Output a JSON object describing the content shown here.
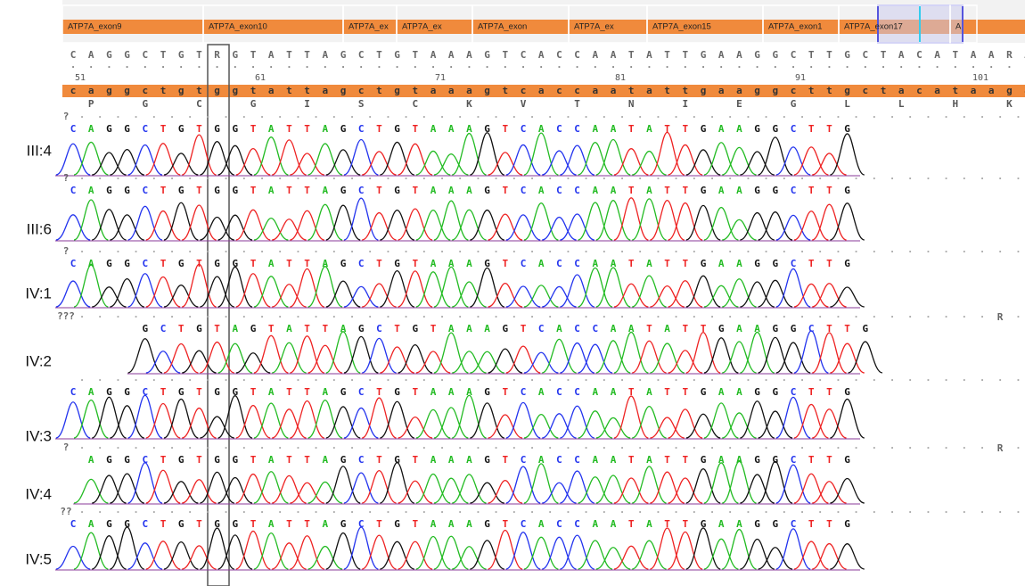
{
  "exons": [
    "ATP7A_exon9",
    "ATP7A_exon10",
    "ATP7A_ex",
    "ATP7A_ex",
    "ATP7A_exon",
    "ATP7A_ex",
    "ATP7A_exon15",
    "ATP7A_exon1",
    "ATP7A_exon17",
    "A"
  ],
  "reference": "CAGGCTGTRGTATTAGCTGTAAAGTCACCAATATTGAAGGCTTGCTACATAARA",
  "positions": [
    51,
    61,
    71,
    81,
    91,
    101
  ],
  "reference_lower": "caggctgtggtattagctgtaaagtcaccaatattgaaggcttgctacataaga",
  "amino_acids": [
    "P",
    "G",
    "C",
    "G",
    "I",
    "S",
    "C",
    "K",
    "V",
    "T",
    "N",
    "I",
    "E",
    "G",
    "L",
    "L",
    "H",
    "K"
  ],
  "samples": [
    {
      "label": "III:4",
      "flag": "?",
      "calls": "CAGGCTGTGGTATTAGCTGTAAAGTCACCAATATTGAAGGCTTG"
    },
    {
      "label": "III:6",
      "flag": "?",
      "calls": "CAGGCTGTGGTATTAGCTGTAAAGTCACCAATATTGAAGGCTTG"
    },
    {
      "label": "IV:1",
      "flag": "?",
      "calls": "CAGGCTGTGGTATTAGCTGTAAAGTCACCAATATTGAAGGCTTG"
    },
    {
      "label": "IV:2",
      "flag": "???",
      "calls": "GCTGTAGTATTAGCTGTAAAGTCACCAATATTGAAGGCTTG",
      "end_flag": "R"
    },
    {
      "label": "IV:3",
      "calls": "CAGGCTGTGGTATTAGCTGTAAAGTCACCAATATTGAAGGCTTG"
    },
    {
      "label": "IV:4",
      "flag": "?",
      "calls": "AGGCTGTGGTATTAGCTGTAAAGTCACCAATATTGAAGGCTTG",
      "end_flag": "R"
    },
    {
      "label": "IV:5",
      "flag": "??",
      "calls": "CAGGCTGTGGTATTAGCTGTAAAGTCACCAATATTGAAGGCTTG"
    }
  ]
}
